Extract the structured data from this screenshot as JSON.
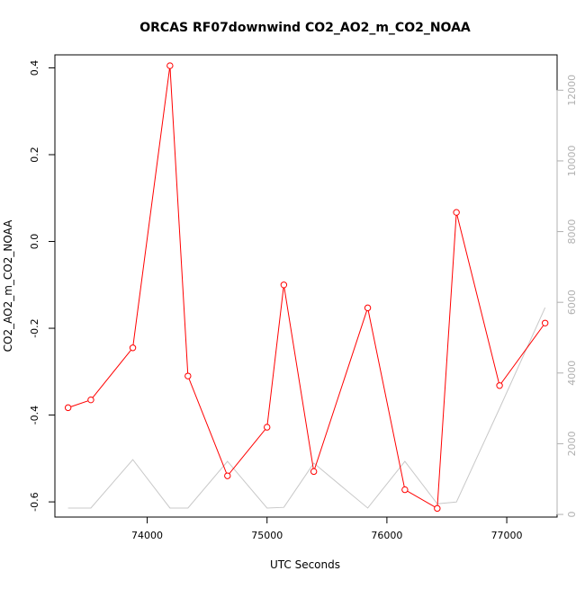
{
  "chart_data": {
    "type": "line",
    "title": "ORCAS RF07downwind CO2_AO2_m_CO2_NOAA",
    "xlabel": "UTC Seconds",
    "ylabel": "CO2_AO2_m_CO2_NOAA",
    "xlim": [
      73230,
      77420
    ],
    "ylim": [
      -0.635,
      0.43
    ],
    "y2lim": [
      -75,
      13000
    ],
    "x_ticks": [
      74000,
      75000,
      76000,
      77000
    ],
    "x_tick_labels": [
      "74000",
      "75000",
      "76000",
      "77000"
    ],
    "y_ticks": [
      -0.6,
      -0.4,
      -0.2,
      0.0,
      0.2,
      0.4
    ],
    "y_tick_labels": [
      "-0.6",
      "-0.4",
      "-0.2",
      "0.0",
      "0.2",
      "0.4"
    ],
    "y2_ticks": [
      0,
      2000,
      4000,
      6000,
      8000,
      10000,
      12000
    ],
    "y2_tick_labels": [
      "0",
      "2000",
      "4000",
      "6000",
      "8000",
      "10000",
      "12000"
    ],
    "grid": false,
    "legend": "none",
    "colors": {
      "primary": "#ff0000",
      "secondary": "#c8c8c8",
      "axis": "#000000",
      "right_axis": "#b0b0b0"
    },
    "series": [
      {
        "axis": "left",
        "marker": "open-circle",
        "x": [
          73340,
          73530,
          73880,
          74190,
          74340,
          74670,
          75000,
          75140,
          75390,
          75840,
          76150,
          76420,
          76580,
          76940,
          77320
        ],
        "y": [
          -0.383,
          -0.365,
          -0.245,
          0.405,
          -0.31,
          -0.54,
          -0.428,
          -0.1,
          -0.53,
          -0.153,
          -0.572,
          -0.615,
          0.067,
          -0.332,
          -0.188
        ]
      },
      {
        "axis": "right",
        "marker": "none",
        "x": [
          73340,
          73530,
          73880,
          74190,
          74340,
          74670,
          75000,
          75140,
          75390,
          75840,
          76150,
          76420,
          76580,
          76940,
          77320
        ],
        "y": [
          180,
          180,
          1550,
          180,
          180,
          1500,
          180,
          200,
          1450,
          180,
          1500,
          300,
          350,
          3000,
          5850
        ]
      }
    ]
  }
}
